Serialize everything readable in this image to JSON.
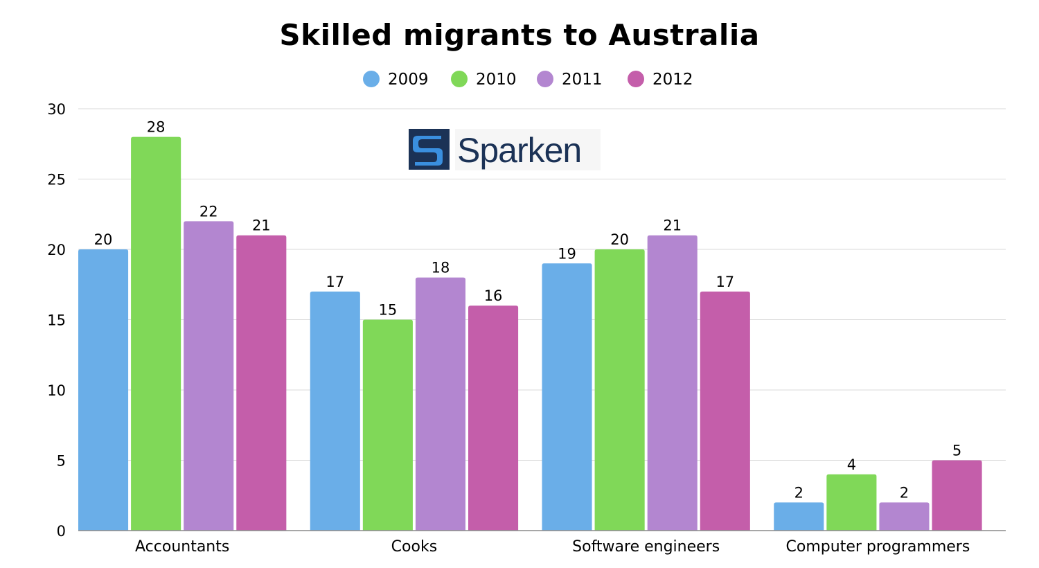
{
  "chart_data": {
    "type": "bar",
    "title": "Skilled migrants to Australia",
    "categories": [
      "Accountants",
      "Cooks",
      "Software engineers",
      "Computer programmers"
    ],
    "series": [
      {
        "name": "2009",
        "color": "#6aaee8",
        "values": [
          20,
          17,
          19,
          2
        ]
      },
      {
        "name": "2010",
        "color": "#80d858",
        "values": [
          28,
          15,
          20,
          4
        ]
      },
      {
        "name": "2011",
        "color": "#b386d0",
        "values": [
          22,
          18,
          21,
          2
        ]
      },
      {
        "name": "2012",
        "color": "#c45eaa",
        "values": [
          21,
          16,
          17,
          5
        ]
      }
    ],
    "ylim": [
      0,
      30
    ],
    "yticks": [
      0,
      5,
      10,
      15,
      20,
      25,
      30
    ],
    "grid": true,
    "legend_position": "top-center",
    "xlabel": "",
    "ylabel": ""
  },
  "watermark": {
    "text": "Sparken",
    "icon": "s-logo-icon",
    "color": "#1b3256"
  }
}
